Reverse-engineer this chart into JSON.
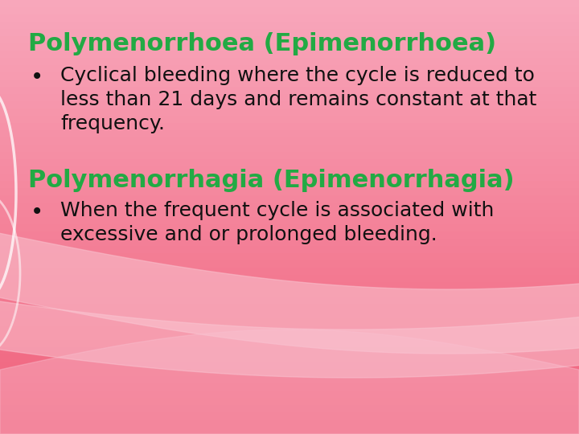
{
  "bg_color_top": "#f0607a",
  "bg_color_bottom": "#f8a8bc",
  "title1": "Polymenorrhoea (Epimenorrhoea)",
  "title2": "Polymenorrhagia (Epimenorrhagia)",
  "title_color": "#22aa44",
  "bullet1_lines": [
    "Cyclical bleeding where the cycle is reduced to",
    "less than 21 days and remains constant at that",
    "frequency."
  ],
  "bullet2_lines": [
    "When the frequent cycle is associated with",
    "excessive and or prolonged bleeding."
  ],
  "bullet_color": "#111111",
  "title_fontsize": 22,
  "body_fontsize": 18,
  "fig_width": 7.2,
  "fig_height": 5.4
}
